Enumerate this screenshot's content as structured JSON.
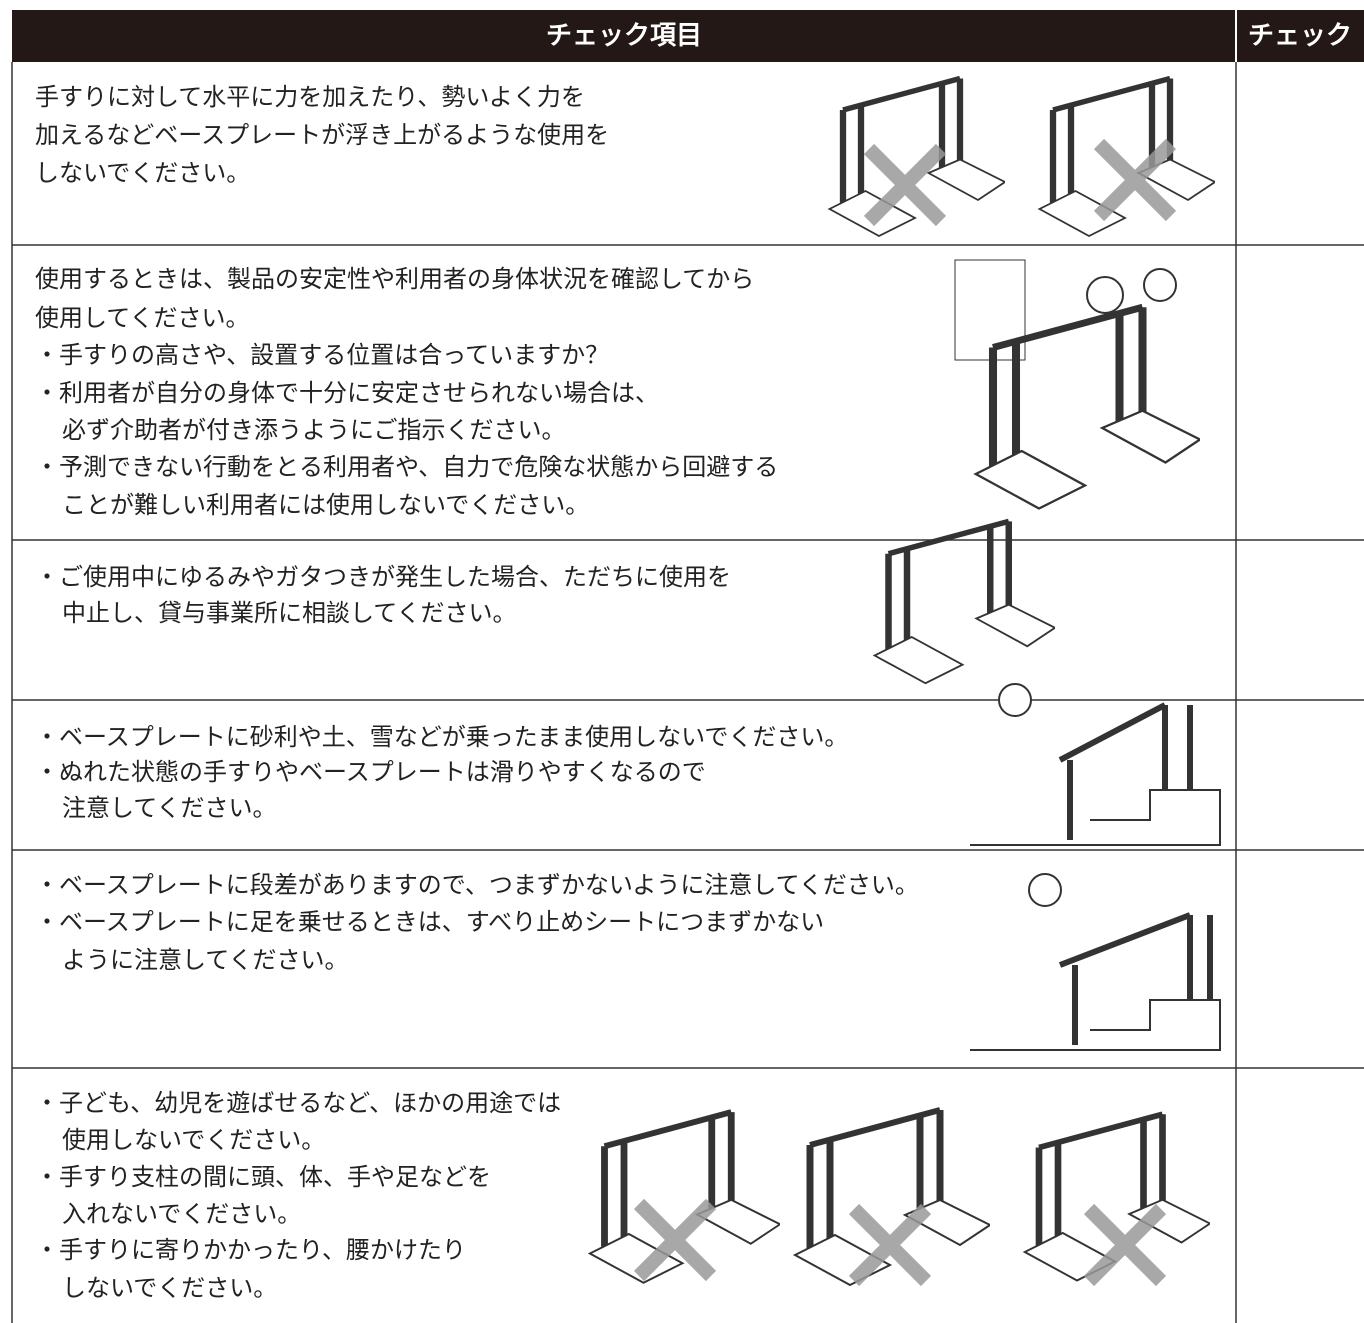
{
  "header": {
    "item": "チェック項目",
    "check": "チェック"
  },
  "rows": [
    {
      "lines": [
        "手すりに対して水平に力を加えたり、勢いよく力を",
        "加えるなどベースプレートが浮き上がるような使用を",
        "しないでください。"
      ]
    },
    {
      "lines": [
        "使用するときは、製品の安定性や利用者の身体状況を確認してから",
        "使用してください。",
        "・手すりの高さや、設置する位置は合っていますか？",
        "・利用者が自分の身体で十分に安定させられない場合は、",
        "必ず介助者が付き添うようにご指示ください。",
        "・予測できない行動をとる利用者や、自力で危険な状態から回避する",
        "ことが難しい利用者には使用しないでください。"
      ]
    },
    {
      "lines": [
        "・ご使用中にゆるみやガタつきが発生した場合、ただちに使用を",
        "中止し、貸与事業所に相談してください。"
      ]
    },
    {
      "lines": [
        "・ベースプレートに砂利や土、雪などが乗ったまま使用しないでください。",
        "・ぬれた状態の手すりやベースプレートは滑りやすくなるので",
        "注意してください。"
      ]
    },
    {
      "lines": [
        "・ベースプレートに段差がありますので、つまずかないように注意してください。",
        "・ベースプレートに足を乗せるときは、すべり止めシートにつまずかない",
        "ように注意してください。"
      ]
    },
    {
      "lines": [
        "・子ども、幼児を遊ばせるなど、ほかの用途では",
        "使用しないでください。",
        "・手すり支柱の間に頭、体、手や足などを",
        "入れないでください。",
        "・手すりに寄りかかったり、腰かけたり",
        "しないでください。"
      ]
    }
  ]
}
